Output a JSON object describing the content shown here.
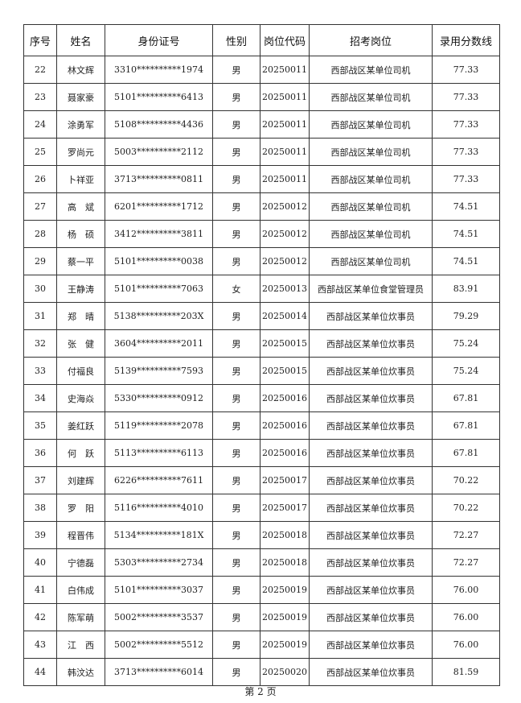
{
  "headers": [
    "序号",
    "姓名",
    "身份证号",
    "性别",
    "岗位代码",
    "招考岗位",
    "录用分数线"
  ],
  "rows": [
    [
      "22",
      "林文辉",
      "3310**********1974",
      "男",
      "20250011",
      "西部战区某单位司机",
      "77.33"
    ],
    [
      "23",
      "聂家豪",
      "5101**********6413",
      "男",
      "20250011",
      "西部战区某单位司机",
      "77.33"
    ],
    [
      "24",
      "涂勇军",
      "5108**********4436",
      "男",
      "20250011",
      "西部战区某单位司机",
      "77.33"
    ],
    [
      "25",
      "罗尚元",
      "5003**********2112",
      "男",
      "20250011",
      "西部战区某单位司机",
      "77.33"
    ],
    [
      "26",
      "卜祥亚",
      "3713**********0811",
      "男",
      "20250011",
      "西部战区某单位司机",
      "77.33"
    ],
    [
      "27",
      "高　斌",
      "6201**********1712",
      "男",
      "20250012",
      "西部战区某单位司机",
      "74.51"
    ],
    [
      "28",
      "杨　硕",
      "3412**********3811",
      "男",
      "20250012",
      "西部战区某单位司机",
      "74.51"
    ],
    [
      "29",
      "蔡一平",
      "5101**********0038",
      "男",
      "20250012",
      "西部战区某单位司机",
      "74.51"
    ],
    [
      "30",
      "王静涛",
      "5101**********7063",
      "女",
      "20250013",
      "西部战区某单位食堂管理员",
      "83.91"
    ],
    [
      "31",
      "郑　晴",
      "5138**********203X",
      "男",
      "20250014",
      "西部战区某单位炊事员",
      "79.29"
    ],
    [
      "32",
      "张　健",
      "3604**********2011",
      "男",
      "20250015",
      "西部战区某单位炊事员",
      "75.24"
    ],
    [
      "33",
      "付福良",
      "5139**********7593",
      "男",
      "20250015",
      "西部战区某单位炊事员",
      "75.24"
    ],
    [
      "34",
      "史海焱",
      "5330**********0912",
      "男",
      "20250016",
      "西部战区某单位炊事员",
      "67.81"
    ],
    [
      "35",
      "姜红跃",
      "5119**********2078",
      "男",
      "20250016",
      "西部战区某单位炊事员",
      "67.81"
    ],
    [
      "36",
      "何　跃",
      "5113**********6113",
      "男",
      "20250016",
      "西部战区某单位炊事员",
      "67.81"
    ],
    [
      "37",
      "刘建辉",
      "6226**********7611",
      "男",
      "20250017",
      "西部战区某单位炊事员",
      "70.22"
    ],
    [
      "38",
      "罗　阳",
      "5116**********4010",
      "男",
      "20250017",
      "西部战区某单位炊事员",
      "70.22"
    ],
    [
      "39",
      "程晋伟",
      "5134**********181X",
      "男",
      "20250018",
      "西部战区某单位炊事员",
      "72.27"
    ],
    [
      "40",
      "宁德磊",
      "5303**********2734",
      "男",
      "20250018",
      "西部战区某单位炊事员",
      "72.27"
    ],
    [
      "41",
      "白伟成",
      "5101**********3037",
      "男",
      "20250019",
      "西部战区某单位炊事员",
      "76.00"
    ],
    [
      "42",
      "陈军萌",
      "5002**********3537",
      "男",
      "20250019",
      "西部战区某单位炊事员",
      "76.00"
    ],
    [
      "43",
      "江　西",
      "5002**********5512",
      "男",
      "20250019",
      "西部战区某单位炊事员",
      "76.00"
    ],
    [
      "44",
      "韩汶达",
      "3713**********6014",
      "男",
      "20250020",
      "西部战区某单位炊事员",
      "81.59"
    ]
  ],
  "footer": "第 2 页"
}
